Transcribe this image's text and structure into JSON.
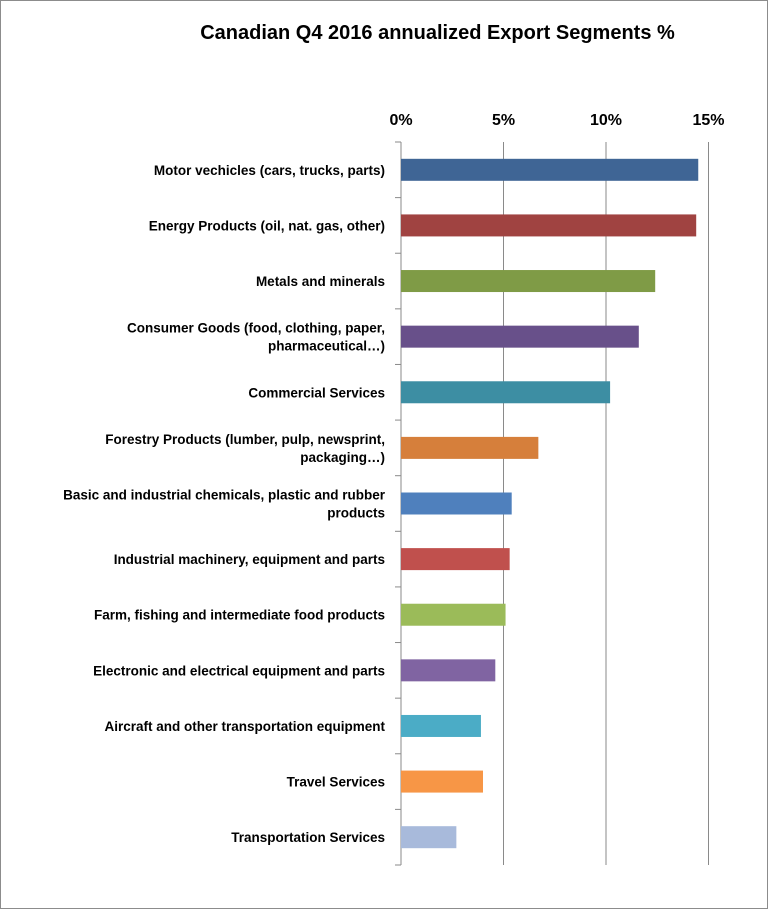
{
  "chart_data": {
    "type": "bar",
    "orientation": "horizontal",
    "title": "Canadian Q4 2016 annualized Export Segments %",
    "xlabel": "",
    "ylabel": "",
    "xlim": [
      0,
      15
    ],
    "x_axis_position": "top",
    "grid": true,
    "legend": "none",
    "tick_labels": [
      "0%",
      "5%",
      "10%",
      "15%"
    ],
    "categories": [
      [
        "Motor vechicles (cars, trucks, parts)"
      ],
      [
        "Energy Products (oil, nat. gas, other)"
      ],
      [
        "Metals and minerals"
      ],
      [
        "Consumer Goods (food, clothing, paper,",
        "pharmaceutical…)"
      ],
      [
        "Commercial Services"
      ],
      [
        "Forestry Products (lumber, pulp, newsprint,",
        "packaging…)"
      ],
      [
        "Basic and industrial chemicals, plastic and rubber",
        "products"
      ],
      [
        "Industrial machinery, equipment and parts"
      ],
      [
        "Farm, fishing and intermediate food products"
      ],
      [
        "Electronic and electrical equipment and parts"
      ],
      [
        "Aircraft and other transportation equipment"
      ],
      [
        "Travel Services"
      ],
      [
        "Transportation Services"
      ]
    ],
    "values": [
      14.5,
      14.4,
      12.4,
      11.6,
      10.2,
      6.7,
      5.4,
      5.3,
      5.1,
      4.6,
      3.9,
      4.0,
      2.7
    ],
    "colors": [
      "#3f6595",
      "#a04341",
      "#7f9b46",
      "#68508a",
      "#3d8ea3",
      "#d67f3b",
      "#4f80bd",
      "#c0504d",
      "#9bbb59",
      "#8064a2",
      "#4bacc6",
      "#f79646",
      "#a8badb"
    ]
  }
}
